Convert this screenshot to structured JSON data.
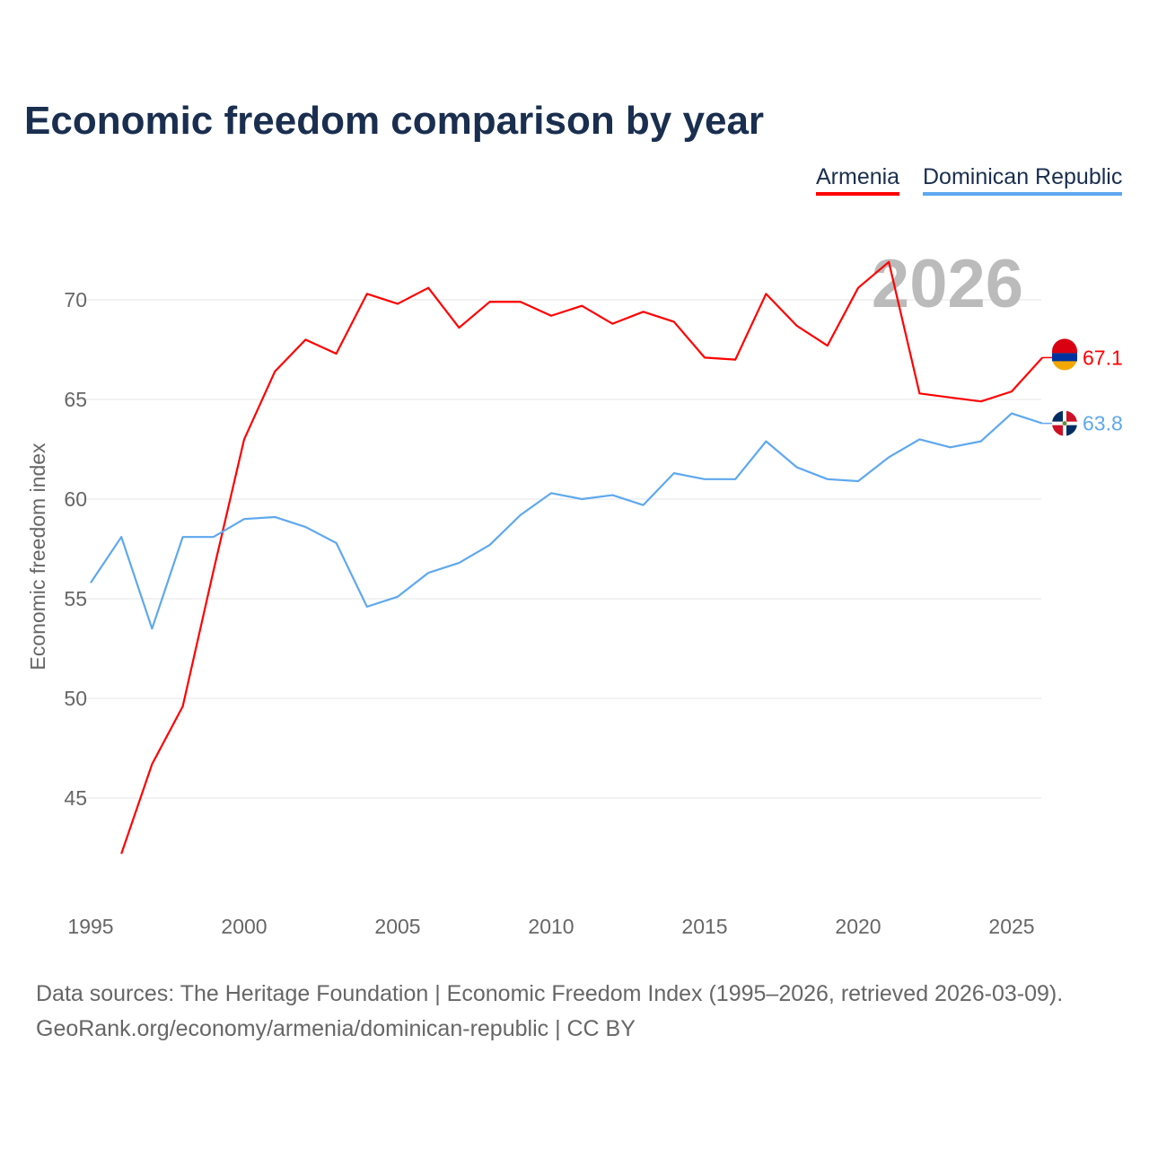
{
  "chart_data": {
    "type": "line",
    "title": "Economic freedom comparison by year",
    "xlabel": "",
    "ylabel": "Economic freedom index",
    "xlim": [
      1995,
      2026
    ],
    "ylim": [
      40,
      73.3
    ],
    "x_ticks": [
      "1995",
      "2000",
      "2005",
      "2010",
      "2015",
      "2020",
      "2025"
    ],
    "y_ticks": [
      "45",
      "50",
      "55",
      "60",
      "65",
      "70"
    ],
    "grid": true,
    "legend_position": "top-right",
    "watermark_year": "2026",
    "series": [
      {
        "name": "Armenia",
        "color": "#ff0000",
        "end_label": "67.1",
        "x": [
          1996,
          1997,
          1998,
          1999,
          2000,
          2001,
          2002,
          2003,
          2004,
          2005,
          2006,
          2007,
          2008,
          2009,
          2010,
          2011,
          2012,
          2013,
          2014,
          2015,
          2016,
          2017,
          2018,
          2019,
          2020,
          2021,
          2022,
          2023,
          2024,
          2025,
          2026
        ],
        "values": [
          42.2,
          46.7,
          49.6,
          56.4,
          63.0,
          66.4,
          68.0,
          67.3,
          70.3,
          69.8,
          70.6,
          68.6,
          69.9,
          69.9,
          69.2,
          69.7,
          68.8,
          69.4,
          68.9,
          67.1,
          67.0,
          70.3,
          68.7,
          67.7,
          70.6,
          71.9,
          65.3,
          65.1,
          64.9,
          65.4,
          67.1
        ]
      },
      {
        "name": "Dominican Republic",
        "color": "#5ea8ee",
        "end_label": "63.8",
        "x": [
          1995,
          1996,
          1997,
          1998,
          1999,
          2000,
          2001,
          2002,
          2003,
          2004,
          2005,
          2006,
          2007,
          2008,
          2009,
          2010,
          2011,
          2012,
          2013,
          2014,
          2015,
          2016,
          2017,
          2018,
          2019,
          2020,
          2021,
          2022,
          2023,
          2024,
          2025,
          2026
        ],
        "values": [
          55.8,
          58.1,
          53.5,
          58.1,
          58.1,
          59.0,
          59.1,
          58.6,
          57.8,
          54.6,
          55.1,
          56.3,
          56.8,
          57.7,
          59.2,
          60.3,
          60.0,
          60.2,
          59.7,
          61.3,
          61.0,
          61.0,
          62.9,
          61.6,
          61.0,
          60.9,
          62.1,
          63.0,
          62.6,
          62.9,
          64.3,
          63.8
        ]
      }
    ]
  },
  "footer": {
    "line1": "Data sources: The Heritage Foundation | Economic Freedom Index (1995–2026, retrieved 2026-03-09).",
    "line2": "GeoRank.org/economy/armenia/dominican-republic | CC BY"
  }
}
